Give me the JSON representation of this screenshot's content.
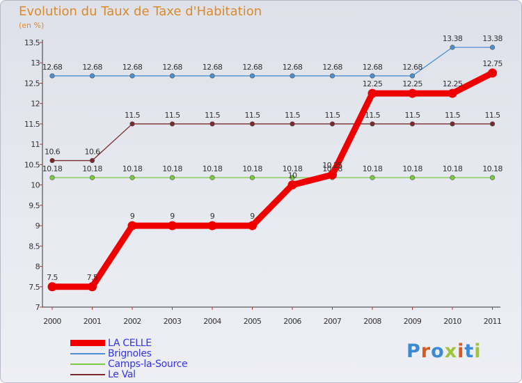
{
  "title": "Evolution du Taux de Taxe d'Habitation",
  "unit_label": "(en %)",
  "logo_text": "Proxiti",
  "colors": {
    "title": "#d98a2a",
    "legend_text": "#3333ee",
    "logo_letters": [
      "#3a8ad6",
      "#d9591e",
      "#3a8ad6",
      "#9ec43a",
      "#d9591e",
      "#3a8ad6",
      "#9ec43a"
    ]
  },
  "chart_data": {
    "type": "line",
    "title": "Evolution du Taux de Taxe d'Habitation",
    "ylabel": "(en %)",
    "xlabel": "",
    "x": [
      "2000",
      "2001",
      "2002",
      "2003",
      "2004",
      "2005",
      "2006",
      "2007",
      "2008",
      "2009",
      "2010",
      "2011"
    ],
    "ylim": [
      7,
      13.5
    ],
    "yticks": [
      "7",
      "7.5",
      "8",
      "8.5",
      "9",
      "9.5",
      "10",
      "10.5",
      "11",
      "11.5",
      "12",
      "12.5",
      "13",
      "13.5"
    ],
    "legend_position": "bottom-left",
    "series": [
      {
        "name": "LA CELLE",
        "color": "#ee0000",
        "bold": true,
        "values": [
          7.5,
          7.5,
          9,
          9,
          9,
          9,
          10,
          10.25,
          12.25,
          12.25,
          12.25,
          12.75
        ],
        "labels": [
          "7.5",
          "7.5",
          "9",
          "9",
          "9",
          "9",
          "10",
          "10.25",
          "12.25",
          "12.25",
          "12.25",
          "12.75"
        ]
      },
      {
        "name": "Brignoles",
        "color": "#4b8fd0",
        "bold": false,
        "values": [
          12.68,
          12.68,
          12.68,
          12.68,
          12.68,
          12.68,
          12.68,
          12.68,
          12.68,
          12.68,
          13.38,
          13.38
        ],
        "labels": [
          "12.68",
          "12.68",
          "12.68",
          "12.68",
          "12.68",
          "12.68",
          "12.68",
          "12.68",
          "12.68",
          "12.68",
          "13.38",
          "13.38"
        ]
      },
      {
        "name": "Camps-la-Source",
        "color": "#78c840",
        "bold": false,
        "values": [
          10.18,
          10.18,
          10.18,
          10.18,
          10.18,
          10.18,
          10.18,
          10.18,
          10.18,
          10.18,
          10.18,
          10.18
        ],
        "labels": [
          "10.18",
          "10.18",
          "10.18",
          "10.18",
          "10.18",
          "10.18",
          "10.18",
          "10.18",
          "10.18",
          "10.18",
          "10.18",
          "10.18"
        ]
      },
      {
        "name": "Le Val",
        "color": "#7a2a2a",
        "bold": false,
        "values": [
          10.6,
          10.6,
          11.5,
          11.5,
          11.5,
          11.5,
          11.5,
          11.5,
          11.5,
          11.5,
          11.5,
          11.5
        ],
        "labels": [
          "10.6",
          "10.6",
          "11.5",
          "11.5",
          "11.5",
          "11.5",
          "11.5",
          "11.5",
          "11.5",
          "11.5",
          "11.5",
          "11.5"
        ]
      }
    ]
  }
}
